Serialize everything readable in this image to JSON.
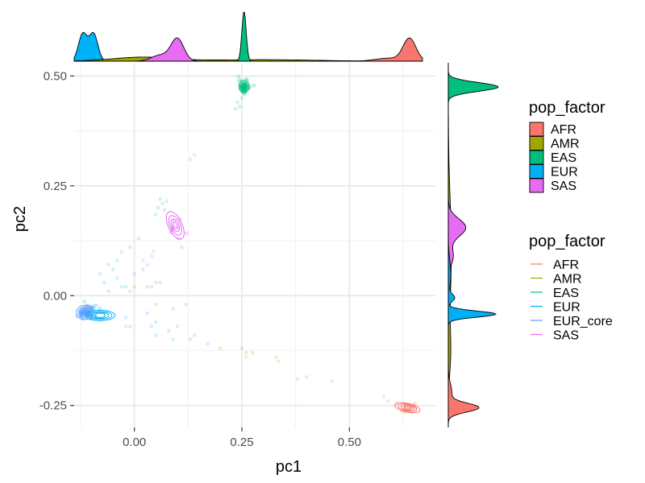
{
  "chart_data": {
    "type": "scatter",
    "title": "",
    "xlabel": "pc1",
    "ylabel": "pc2",
    "xlim": [
      -0.14,
      0.7
    ],
    "ylim": [
      -0.3,
      0.53
    ],
    "x_ticks": [
      0.0,
      0.25,
      0.5
    ],
    "x_tick_labels": [
      "0.00",
      "0.25",
      "0.50"
    ],
    "y_ticks": [
      -0.25,
      0.0,
      0.25,
      0.5
    ],
    "y_tick_labels": [
      "-0.25",
      "0.00",
      "0.25",
      "0.50"
    ],
    "grid": true,
    "background": "#ffffff",
    "colors": {
      "AFR": "#F8766D",
      "AMR": "#A3A500",
      "EAS": "#00BF7D",
      "EUR": "#00B0F6",
      "EUR_core": "#619CFF",
      "SAS": "#E76BF3"
    },
    "fill_legend": {
      "title": "pop_factor",
      "position": "right-top",
      "entries": [
        "AFR",
        "AMR",
        "EAS",
        "EUR",
        "SAS"
      ]
    },
    "line_legend": {
      "title": "pop_factor",
      "position": "right-bottom",
      "entries": [
        "AFR",
        "AMR",
        "EAS",
        "EUR",
        "EUR_core",
        "SAS"
      ]
    },
    "clusters": [
      {
        "name": "EAS",
        "center": [
          0.255,
          0.475
        ],
        "spread": [
          0.006,
          0.008
        ],
        "count": 45
      },
      {
        "name": "EUR",
        "center": [
          -0.11,
          -0.04
        ],
        "spread": [
          0.012,
          0.008
        ],
        "count": 40
      },
      {
        "name": "EUR_core",
        "center": [
          -0.115,
          -0.037
        ],
        "spread": [
          0.01,
          0.007
        ],
        "count": 35
      },
      {
        "name": "SAS",
        "center": [
          0.1,
          0.155
        ],
        "spread": [
          0.012,
          0.015
        ],
        "count": 10
      },
      {
        "name": "AFR",
        "center": [
          0.64,
          -0.255
        ],
        "spread": [
          0.012,
          0.006
        ],
        "count": 12
      }
    ],
    "scatter_points": [
      {
        "group": "EAS",
        "x": 0.24,
        "y": 0.44
      },
      {
        "group": "EAS",
        "x": 0.245,
        "y": 0.43
      },
      {
        "group": "EAS",
        "x": 0.235,
        "y": 0.425
      },
      {
        "group": "EAS",
        "x": 0.25,
        "y": 0.45
      },
      {
        "group": "EAS",
        "x": 0.06,
        "y": 0.22
      },
      {
        "group": "EAS",
        "x": 0.065,
        "y": 0.21
      },
      {
        "group": "EAS",
        "x": 0.07,
        "y": 0.195
      },
      {
        "group": "EAS",
        "x": 0.055,
        "y": 0.2
      },
      {
        "group": "EAS",
        "x": 0.075,
        "y": 0.215
      },
      {
        "group": "EAS",
        "x": 0.05,
        "y": 0.185
      },
      {
        "group": "SAS",
        "x": 0.13,
        "y": 0.31
      },
      {
        "group": "SAS",
        "x": 0.14,
        "y": 0.32
      },
      {
        "group": "SAS",
        "x": 0.04,
        "y": 0.09
      },
      {
        "group": "SAS",
        "x": 0.045,
        "y": 0.1
      },
      {
        "group": "SAS",
        "x": 0.02,
        "y": 0.08
      },
      {
        "group": "SAS",
        "x": 0.03,
        "y": 0.07
      },
      {
        "group": "AMR",
        "x": 0.0,
        "y": 0.02
      },
      {
        "group": "AMR",
        "x": 0.03,
        "y": 0.02
      },
      {
        "group": "AMR",
        "x": 0.05,
        "y": -0.02
      },
      {
        "group": "AMR",
        "x": 0.05,
        "y": 0.03
      },
      {
        "group": "AMR",
        "x": 0.11,
        "y": 0.11
      },
      {
        "group": "AMR",
        "x": 0.25,
        "y": -0.12
      },
      {
        "group": "AMR",
        "x": 0.26,
        "y": -0.13
      },
      {
        "group": "AMR",
        "x": 0.275,
        "y": -0.13
      },
      {
        "group": "AMR",
        "x": 0.26,
        "y": -0.14
      },
      {
        "group": "AMR",
        "x": 0.33,
        "y": -0.14
      },
      {
        "group": "AMR",
        "x": 0.335,
        "y": -0.15
      },
      {
        "group": "AMR",
        "x": 0.2,
        "y": -0.12
      },
      {
        "group": "AFR",
        "x": 0.38,
        "y": -0.19
      },
      {
        "group": "AFR",
        "x": 0.4,
        "y": -0.185
      },
      {
        "group": "AFR",
        "x": 0.46,
        "y": -0.195
      },
      {
        "group": "AFR",
        "x": 0.58,
        "y": -0.23
      },
      {
        "group": "AFR",
        "x": 0.59,
        "y": -0.24
      },
      {
        "group": "AFR",
        "x": 0.61,
        "y": -0.245
      },
      {
        "group": "EUR",
        "x": -0.06,
        "y": 0.07
      },
      {
        "group": "EUR",
        "x": -0.05,
        "y": 0.06
      },
      {
        "group": "EUR",
        "x": -0.04,
        "y": 0.04
      },
      {
        "group": "EUR",
        "x": -0.02,
        "y": 0.02
      },
      {
        "group": "EUR",
        "x": -0.03,
        "y": 0.02
      },
      {
        "group": "EUR",
        "x": -0.01,
        "y": 0.01
      },
      {
        "group": "EUR",
        "x": -0.08,
        "y": 0.05
      },
      {
        "group": "EUR",
        "x": -0.07,
        "y": 0.03
      },
      {
        "group": "EUR",
        "x": -0.06,
        "y": 0.01
      },
      {
        "group": "EUR",
        "x": -0.02,
        "y": -0.05
      },
      {
        "group": "EUR",
        "x": -0.01,
        "y": -0.07
      },
      {
        "group": "EUR",
        "x": -0.02,
        "y": -0.07
      },
      {
        "group": "EUR",
        "x": 0.0,
        "y": 0.05
      },
      {
        "group": "EUR",
        "x": 0.02,
        "y": 0.06
      },
      {
        "group": "EUR",
        "x": 0.01,
        "y": 0.13
      },
      {
        "group": "EUR",
        "x": -0.01,
        "y": 0.11
      },
      {
        "group": "EUR",
        "x": 0.04,
        "y": -0.07
      },
      {
        "group": "EUR",
        "x": 0.05,
        "y": -0.09
      },
      {
        "group": "EUR",
        "x": 0.1,
        "y": -0.07
      },
      {
        "group": "EUR",
        "x": 0.08,
        "y": -0.08
      },
      {
        "group": "EUR",
        "x": 0.14,
        "y": -0.09
      },
      {
        "group": "EUR",
        "x": 0.13,
        "y": -0.1
      },
      {
        "group": "EUR",
        "x": 0.09,
        "y": -0.1
      },
      {
        "group": "EUR",
        "x": 0.04,
        "y": 0.02
      },
      {
        "group": "EUR",
        "x": 0.06,
        "y": 0.03
      },
      {
        "group": "EUR",
        "x": -0.04,
        "y": 0.08
      },
      {
        "group": "EUR",
        "x": 0.03,
        "y": -0.04
      },
      {
        "group": "EUR",
        "x": 0.05,
        "y": -0.06
      },
      {
        "group": "EUR",
        "x": 0.17,
        "y": -0.11
      },
      {
        "group": "EUR",
        "x": 0.09,
        "y": -0.03
      },
      {
        "group": "EUR",
        "x": 0.12,
        "y": -0.02
      },
      {
        "group": "EUR",
        "x": -0.03,
        "y": 0.1
      }
    ],
    "contours": [
      {
        "group": "EAS",
        "center": [
          0.255,
          0.476
        ],
        "radii": [
          [
            0.012,
            0.014
          ],
          [
            0.009,
            0.01
          ],
          [
            0.006,
            0.007
          ],
          [
            0.003,
            0.004
          ]
        ],
        "rotation": 0
      },
      {
        "group": "SAS",
        "center": [
          0.095,
          0.16
        ],
        "radii": [
          [
            0.016,
            0.034
          ],
          [
            0.012,
            0.024
          ],
          [
            0.008,
            0.015
          ],
          [
            0.004,
            0.008
          ]
        ],
        "rotation": -25
      },
      {
        "group": "AFR",
        "center": [
          0.635,
          -0.255
        ],
        "radii": [
          [
            0.03,
            0.01
          ],
          [
            0.022,
            0.008
          ],
          [
            0.015,
            0.006
          ],
          [
            0.008,
            0.004
          ]
        ],
        "rotation": 12
      },
      {
        "group": "EUR",
        "center": [
          -0.08,
          -0.045
        ],
        "radii": [
          [
            0.035,
            0.012
          ],
          [
            0.028,
            0.009
          ],
          [
            0.02,
            0.007
          ],
          [
            0.012,
            0.005
          ]
        ],
        "rotation": 0
      },
      {
        "group": "EUR_core",
        "center": [
          -0.115,
          -0.038
        ],
        "radii": [
          [
            0.02,
            0.016
          ],
          [
            0.015,
            0.012
          ],
          [
            0.01,
            0.008
          ],
          [
            0.005,
            0.004
          ]
        ],
        "rotation": 0
      }
    ],
    "density_x": [
      {
        "group": "EUR",
        "peaks": [
          [
            -0.12,
            0.55,
            0.01
          ],
          [
            -0.095,
            0.55,
            0.01
          ]
        ]
      },
      {
        "group": "AMR",
        "peaks": [
          [
            0.02,
            0.08,
            0.07
          ],
          [
            0.3,
            0.03,
            0.12
          ]
        ]
      },
      {
        "group": "SAS",
        "peaks": [
          [
            0.1,
            0.45,
            0.015
          ],
          [
            0.06,
            0.12,
            0.02
          ]
        ]
      },
      {
        "group": "EAS",
        "peaks": [
          [
            0.255,
            1.0,
            0.005
          ]
        ]
      },
      {
        "group": "AFR",
        "peaks": [
          [
            0.64,
            0.45,
            0.015
          ],
          [
            0.59,
            0.06,
            0.03
          ]
        ]
      }
    ],
    "density_y": [
      {
        "group": "EAS",
        "peaks": [
          [
            0.475,
            1.0,
            0.01
          ],
          [
            0.215,
            0.03,
            0.01
          ]
        ]
      },
      {
        "group": "AMR",
        "peaks": [
          [
            0.1,
            0.06,
            0.12
          ],
          [
            -0.13,
            0.04,
            0.05
          ]
        ]
      },
      {
        "group": "SAS",
        "peaks": [
          [
            0.155,
            0.35,
            0.02
          ],
          [
            0.09,
            0.1,
            0.02
          ]
        ]
      },
      {
        "group": "EUR",
        "peaks": [
          [
            -0.042,
            0.95,
            0.007
          ],
          [
            -0.005,
            0.12,
            0.008
          ],
          [
            0.05,
            0.05,
            0.03
          ]
        ]
      },
      {
        "group": "AFR",
        "peaks": [
          [
            -0.255,
            0.6,
            0.01
          ],
          [
            -0.22,
            0.07,
            0.02
          ]
        ]
      }
    ]
  }
}
